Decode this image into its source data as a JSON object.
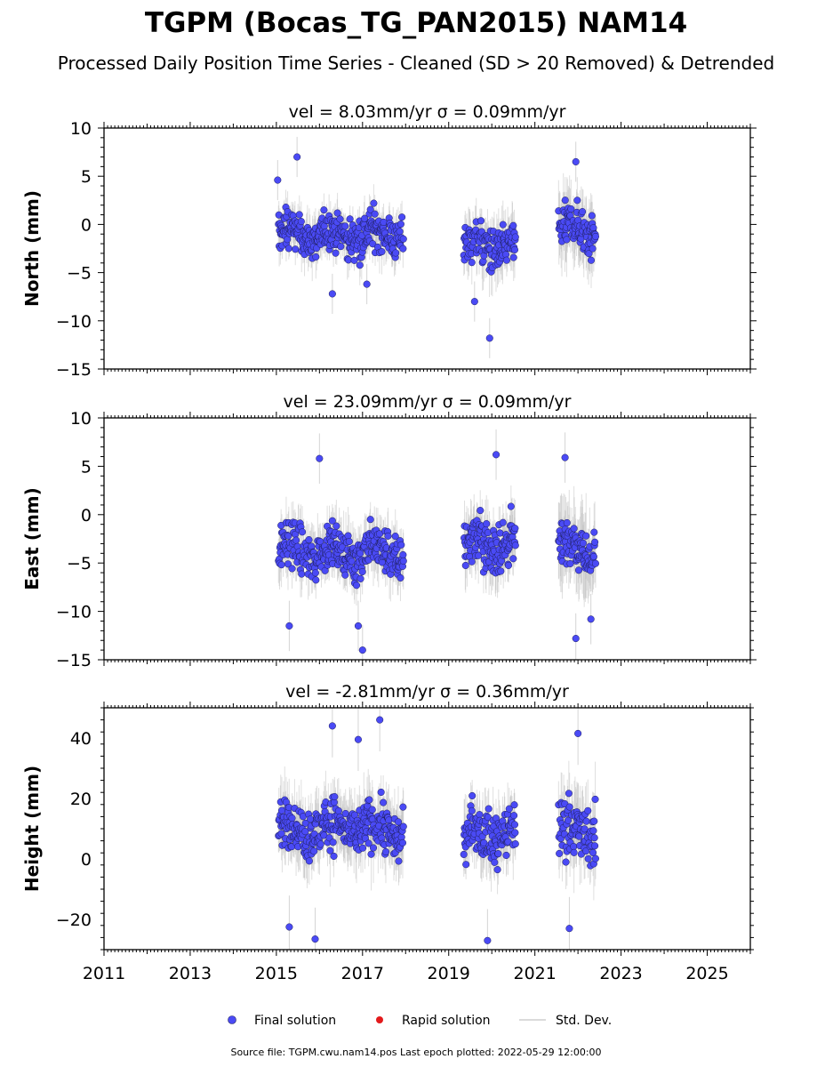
{
  "title": "TGPM (Bocas_TG_PAN2015) NAM14",
  "subtitle": "Processed Daily Position Time Series - Cleaned (SD > 20 Removed) & Detrended",
  "footer": "Source file: TGPM.cwu.nam14.pos  Last epoch plotted: 2022-05-29 12:00:00",
  "legend": [
    {
      "label": "Final solution",
      "color": "#4a4af5"
    },
    {
      "label": "Rapid solution",
      "color": "#e31a1c"
    },
    {
      "label": "Std. Dev.",
      "color": "#cfcfcf"
    }
  ],
  "colors": {
    "final": "#4a4af5",
    "rapid": "#e31a1c",
    "stddev": "#b8b8b8",
    "axis": "#000000"
  },
  "chart_data": [
    {
      "type": "scatter",
      "panel_title": "vel = 8.03mm/yr   σ = 0.09mm/yr",
      "ylabel": "North (mm)",
      "xlim": [
        2011,
        2026
      ],
      "ylim": [
        -15,
        10
      ],
      "yticks": [
        10,
        5,
        0,
        -5,
        -10,
        -15
      ],
      "xticks": [
        "2011",
        "2013",
        "2015",
        "2017",
        "2019",
        "2021",
        "2023",
        "2025"
      ],
      "segments": [
        {
          "start": 2015.05,
          "end": 2017.95,
          "center": -1.0,
          "spread": 1.8,
          "sd": 1.6
        },
        {
          "start": 2019.35,
          "end": 2020.55,
          "center": -2.2,
          "spread": 1.9,
          "sd": 2.0
        },
        {
          "start": 2021.55,
          "end": 2022.41,
          "center": -0.5,
          "spread": 2.0,
          "sd": 2.6
        }
      ],
      "highlights": [
        [
          2015.48,
          7.0
        ],
        [
          2015.03,
          4.6
        ],
        [
          2019.95,
          -11.8
        ],
        [
          2019.6,
          -8.0
        ],
        [
          2021.95,
          6.5
        ],
        [
          2016.3,
          -7.2
        ],
        [
          2017.1,
          -6.2
        ]
      ]
    },
    {
      "type": "scatter",
      "panel_title": "vel = 23.09mm/yr   σ = 0.09mm/yr",
      "ylabel": "East (mm)",
      "xlim": [
        2011,
        2026
      ],
      "ylim": [
        -15,
        10
      ],
      "yticks": [
        10,
        5,
        0,
        -5,
        -10,
        -15
      ],
      "xticks": [
        "2011",
        "2013",
        "2015",
        "2017",
        "2019",
        "2021",
        "2023",
        "2025"
      ],
      "segments": [
        {
          "start": 2015.05,
          "end": 2017.95,
          "center": -3.8,
          "spread": 2.2,
          "sd": 2.0
        },
        {
          "start": 2019.35,
          "end": 2020.55,
          "center": -3.0,
          "spread": 2.3,
          "sd": 2.3
        },
        {
          "start": 2021.55,
          "end": 2022.41,
          "center": -3.5,
          "spread": 2.6,
          "sd": 3.0
        }
      ],
      "highlights": [
        [
          2016.0,
          5.8
        ],
        [
          2017.0,
          -14.0
        ],
        [
          2016.9,
          -11.5
        ],
        [
          2015.3,
          -11.5
        ],
        [
          2020.1,
          6.2
        ],
        [
          2021.7,
          5.9
        ],
        [
          2021.95,
          -12.8
        ],
        [
          2022.3,
          -10.8
        ]
      ]
    },
    {
      "type": "scatter",
      "panel_title": "vel = -2.81mm/yr   σ = 0.36mm/yr",
      "ylabel": "Height (mm)",
      "xlim": [
        2011,
        2026
      ],
      "ylim": [
        -30,
        50
      ],
      "yticks": [
        40,
        20,
        0,
        -20
      ],
      "xticks": [
        "2011",
        "2013",
        "2015",
        "2017",
        "2019",
        "2021",
        "2023",
        "2025"
      ],
      "segments": [
        {
          "start": 2015.05,
          "end": 2017.95,
          "center": 10.0,
          "spread": 7.5,
          "sd": 8.0
        },
        {
          "start": 2019.35,
          "end": 2020.55,
          "center": 8.0,
          "spread": 8.0,
          "sd": 8.0
        },
        {
          "start": 2021.55,
          "end": 2022.41,
          "center": 9.0,
          "spread": 9.0,
          "sd": 9.0
        }
      ],
      "highlights": [
        [
          2017.4,
          46.0
        ],
        [
          2016.3,
          44.0
        ],
        [
          2016.9,
          39.5
        ],
        [
          2019.9,
          -27.0
        ],
        [
          2015.9,
          -26.5
        ],
        [
          2015.3,
          -22.5
        ],
        [
          2021.8,
          -23.0
        ],
        [
          2022.0,
          41.5
        ]
      ]
    }
  ]
}
